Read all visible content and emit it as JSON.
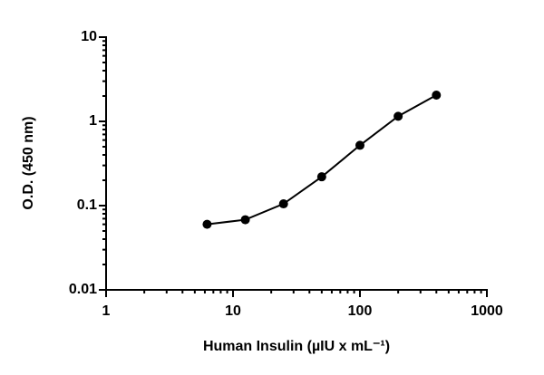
{
  "chart_data": {
    "type": "line",
    "x_label": "Human Insulin (µIU x mL⁻¹)",
    "y_label": "O.D. (450 nm)",
    "x": [
      6.25,
      12.5,
      25,
      50,
      100,
      200,
      400
    ],
    "series": [
      {
        "color": "#000000",
        "values": [
          0.06,
          0.068,
          0.105,
          0.22,
          0.52,
          1.15,
          2.05
        ]
      }
    ],
    "xlim": [
      1,
      1000
    ],
    "xticks": [
      1,
      10,
      100,
      1000
    ],
    "ylim": [
      0.01,
      10
    ],
    "yticks": [
      0.01,
      0.1,
      1,
      10
    ],
    "xlog": true,
    "ylog": true,
    "minor_ticks": true,
    "grid": false
  }
}
